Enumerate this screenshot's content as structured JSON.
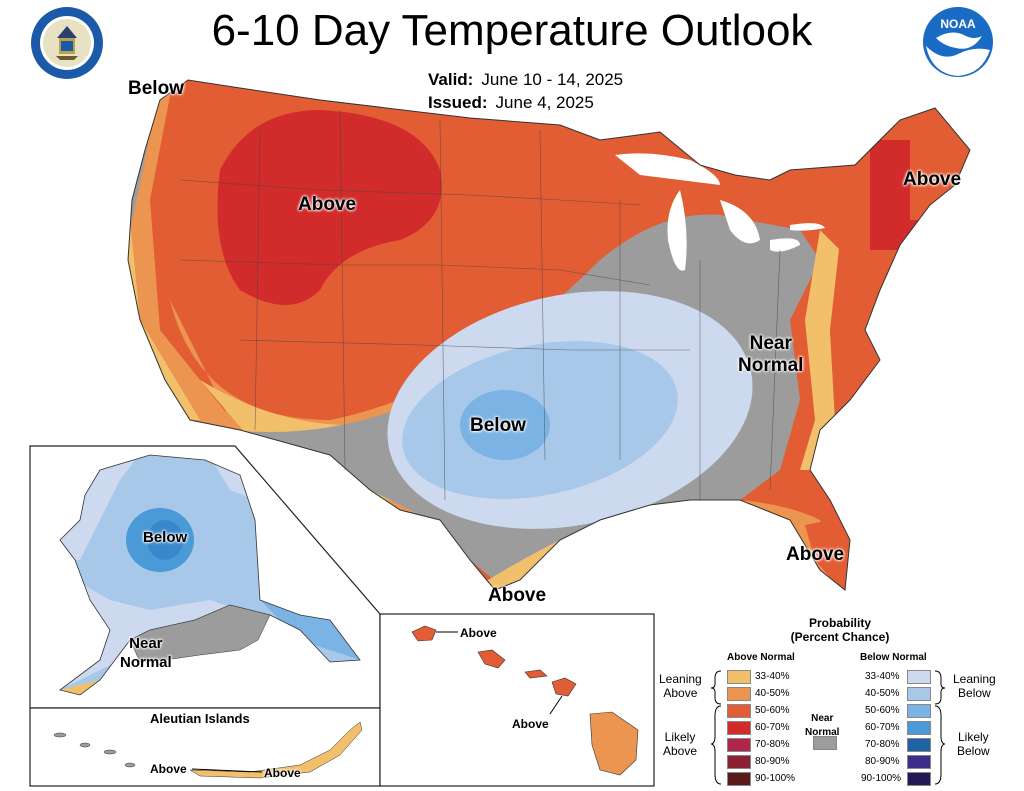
{
  "header": {
    "title": "6-10 Day Temperature Outlook",
    "valid_label": "Valid:",
    "valid_value": "June 10 - 14, 2025",
    "issued_label": "Issued:",
    "issued_value": "June 4, 2025",
    "left_logo": "department-of-commerce-seal",
    "right_logo": "NOAA"
  },
  "colors": {
    "an_33_40": "#f2c06b",
    "an_40_50": "#eb9550",
    "an_50_60": "#e25d33",
    "an_60_70": "#d12b2b",
    "an_70_80": "#b0254a",
    "an_80_90": "#8c2035",
    "an_90_100": "#5a1a1a",
    "bn_33_40": "#cdd9ee",
    "bn_40_50": "#a7c8e8",
    "bn_50_60": "#7bb4e4",
    "bn_60_70": "#4a9ad8",
    "bn_70_80": "#1f63a6",
    "bn_80_90": "#3b2d8a",
    "bn_90_100": "#221a55",
    "near_normal": "#9c9c9c"
  },
  "map_labels": {
    "northwest": "Below",
    "rockies": "Above",
    "new_england": "Above",
    "mid_atlantic": "Near\nNormal",
    "southern_plains": "Below",
    "florida": "Above",
    "texas_coast": "Above",
    "alaska_inland": "Below",
    "alaska_south": "Near\nNormal",
    "aleutians_title": "Aleutian Islands",
    "aleutians_a": "Above",
    "aleutians_b": "Above",
    "hawaii_kauai": "Above",
    "hawaii_big": "Above"
  },
  "legend": {
    "title": "Probability\n(Percent Chance)",
    "above_header": "Above Normal",
    "below_header": "Below Normal",
    "near_normal": "Near\nNormal",
    "leaning_above": "Leaning\nAbove",
    "likely_above": "Likely\nAbove",
    "leaning_below": "Leaning\nBelow",
    "likely_below": "Likely\nBelow",
    "ranges": [
      "33-40%",
      "40-50%",
      "50-60%",
      "60-70%",
      "70-80%",
      "80-90%",
      "90-100%"
    ]
  }
}
